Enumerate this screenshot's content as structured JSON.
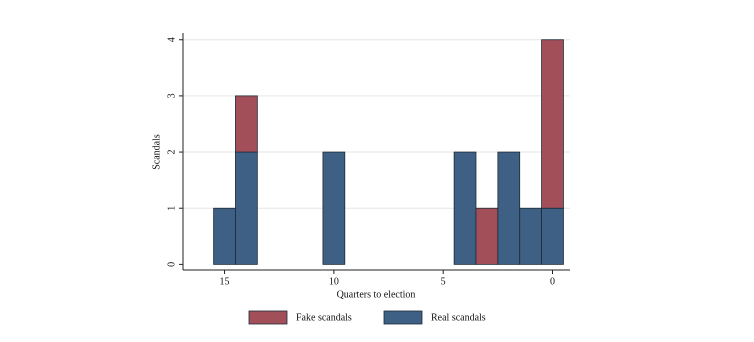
{
  "chart_data": {
    "type": "bar",
    "stacked": true,
    "x": [
      15,
      14,
      10,
      4,
      3,
      2,
      1,
      0
    ],
    "series": [
      {
        "name": "Fake scandals",
        "color": "#a34f5a",
        "values": [
          0,
          1,
          0,
          0,
          1,
          0,
          0,
          3
        ]
      },
      {
        "name": "Real scandals",
        "color": "#3e6085",
        "values": [
          1,
          2,
          2,
          2,
          0,
          2,
          1,
          1
        ]
      }
    ],
    "xlabel": "Quarters to election",
    "ylabel": "Scandals",
    "xlim": [
      16.9,
      -0.8
    ],
    "xticks": [
      15,
      10,
      5,
      0
    ],
    "ylim": [
      -0.1,
      4.12
    ],
    "yticks": [
      0,
      1,
      2,
      3,
      4
    ],
    "grid": true,
    "legend": "bottom"
  }
}
